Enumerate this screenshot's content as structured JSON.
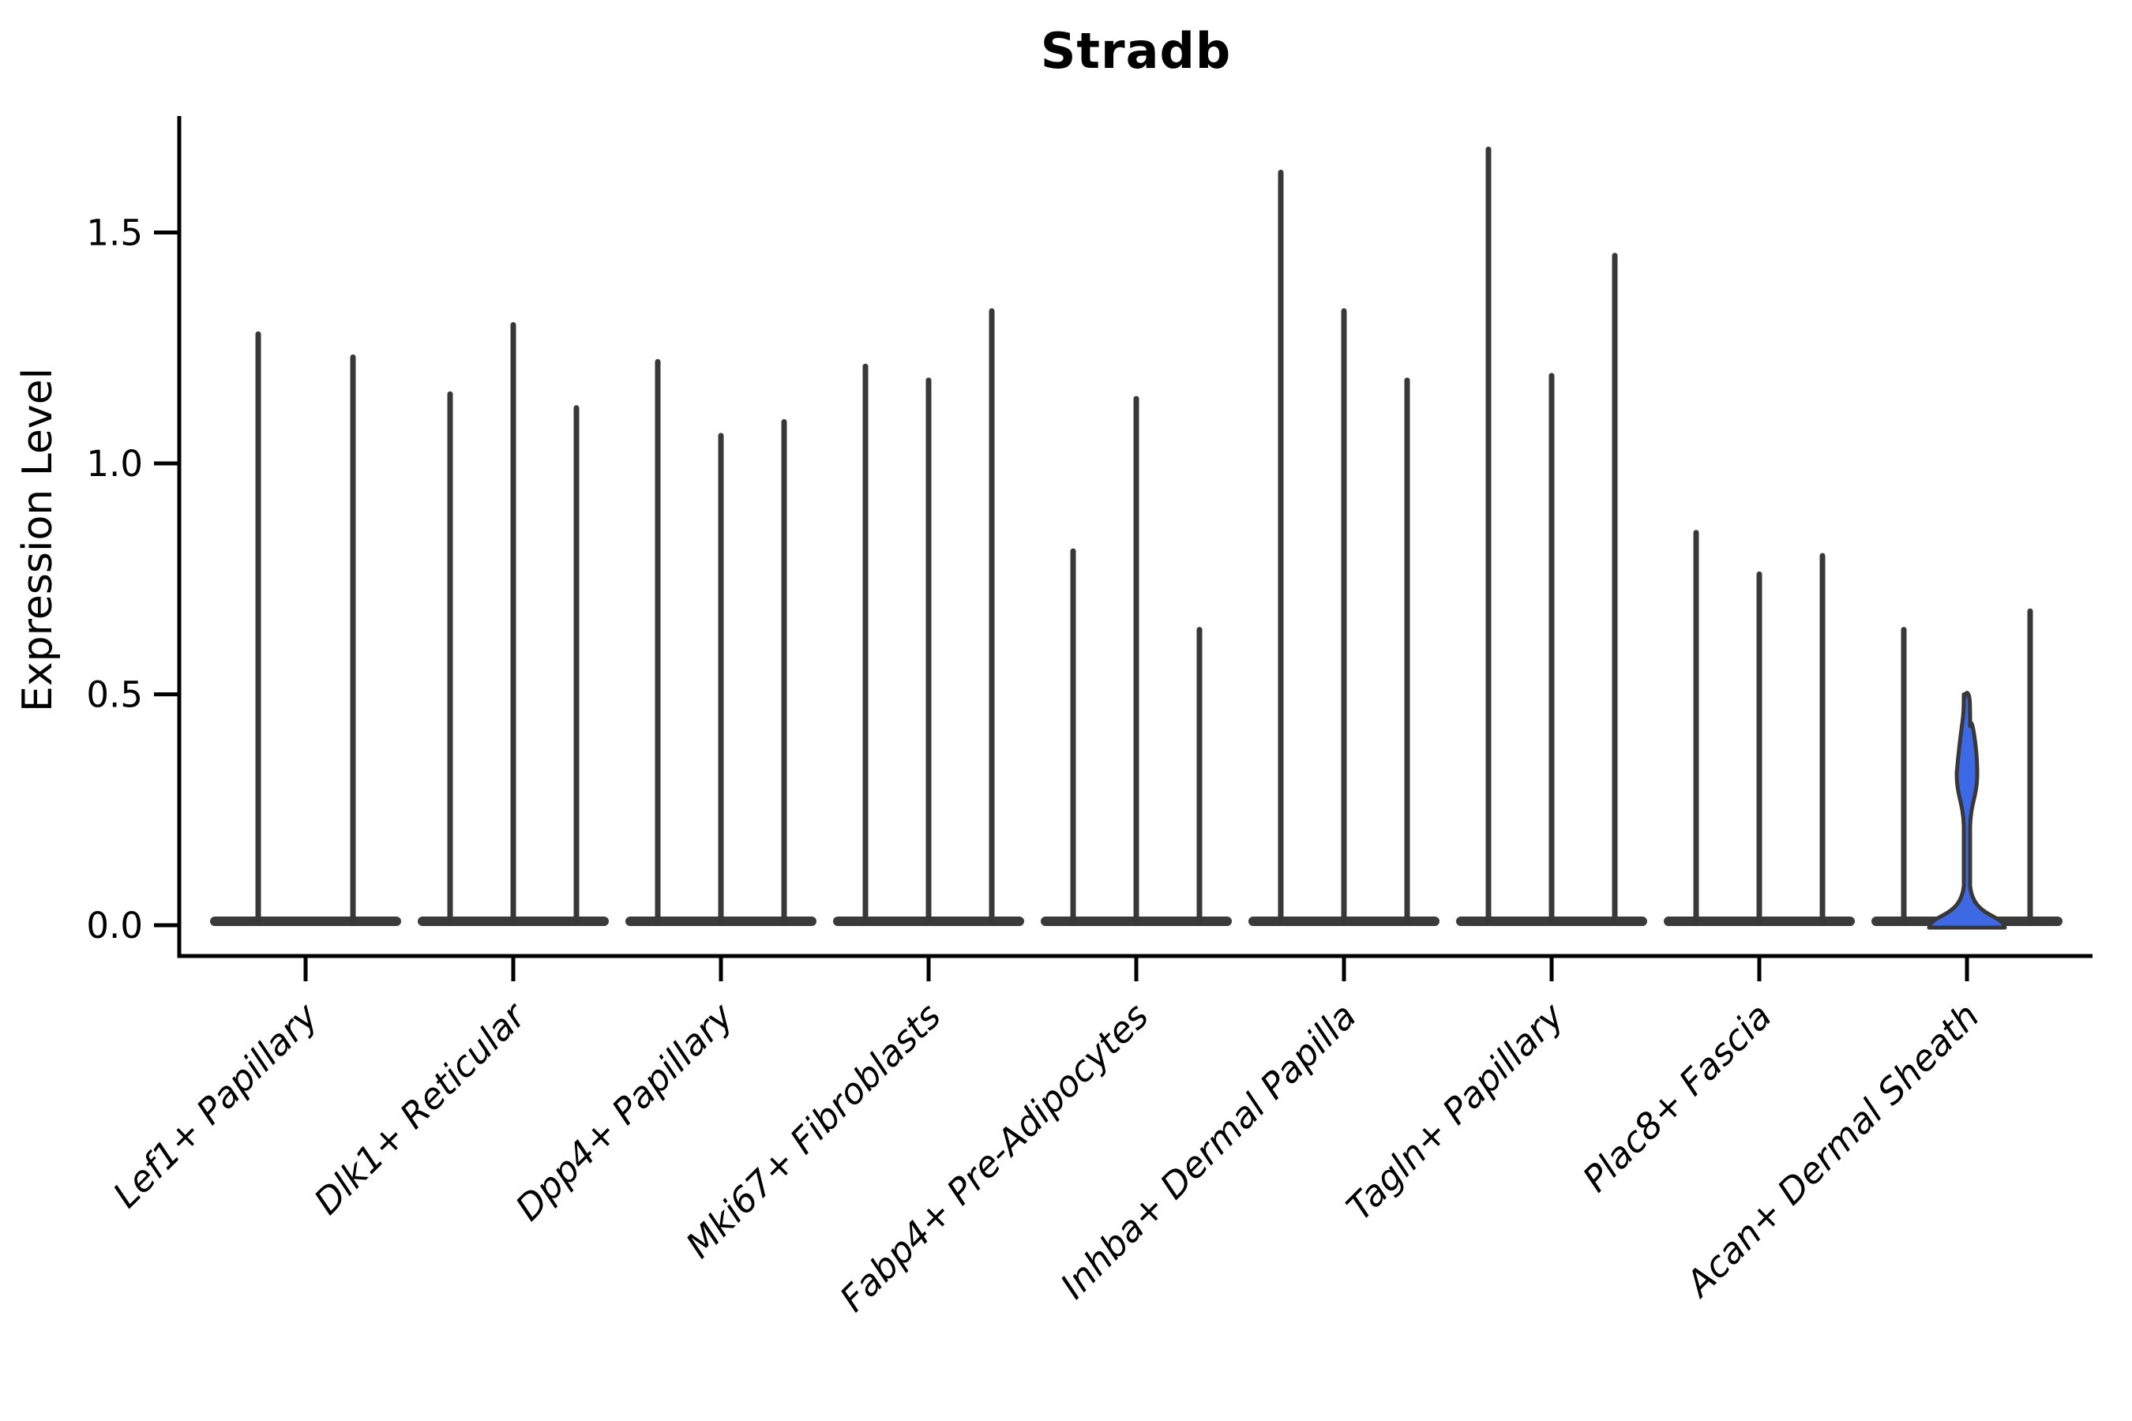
{
  "chart_data": {
    "type": "violin",
    "title": "Stradb",
    "ylabel": "Expression Level",
    "xlabel": "",
    "grid": false,
    "legend": null,
    "ylim": [
      -0.073,
      1.752
    ],
    "yticks": [
      "0.0",
      "0.5",
      "1.0",
      "1.5"
    ],
    "ytick_values": [
      0.0,
      0.5,
      1.0,
      1.5
    ],
    "categories": [
      "Lef1+ Papillary",
      "Dlk1+ Reticular",
      "Dpp4+ Papillary",
      "Mki67+ Fibroblasts",
      "Fabp4+ Pre-Adipocytes",
      "Inhba+ Dermal Papilla",
      "Tagln+ Papillary",
      "Plac8+ Fascia",
      "Acan+ Dermal Sheath"
    ],
    "groups": [
      {
        "category": "Lef1+ Papillary",
        "violins": [
          {
            "max": 1.28
          },
          {
            "max": 1.23
          }
        ]
      },
      {
        "category": "Dlk1+ Reticular",
        "violins": [
          {
            "max": 1.15
          },
          {
            "max": 1.3
          },
          {
            "max": 1.12
          }
        ]
      },
      {
        "category": "Dpp4+ Papillary",
        "violins": [
          {
            "max": 1.22
          },
          {
            "max": 1.06
          },
          {
            "max": 1.09
          }
        ]
      },
      {
        "category": "Mki67+ Fibroblasts",
        "violins": [
          {
            "max": 1.21
          },
          {
            "max": 1.18
          },
          {
            "max": 1.33
          }
        ]
      },
      {
        "category": "Fabp4+ Pre-Adipocytes",
        "violins": [
          {
            "max": 0.81
          },
          {
            "max": 1.14
          },
          {
            "max": 0.64
          }
        ]
      },
      {
        "category": "Inhba+ Dermal Papilla",
        "violins": [
          {
            "max": 1.63
          },
          {
            "max": 1.33
          },
          {
            "max": 1.18
          }
        ]
      },
      {
        "category": "Tagln+ Papillary",
        "violins": [
          {
            "max": 1.68
          },
          {
            "max": 1.19
          },
          {
            "max": 1.45
          }
        ]
      },
      {
        "category": "Plac8+ Fascia",
        "violins": [
          {
            "max": 0.85
          },
          {
            "max": 0.76
          },
          {
            "max": 0.8
          }
        ]
      },
      {
        "category": "Acan+ Dermal Sheath",
        "violins": [
          {
            "max": 0.64
          },
          {
            "max": 0.5,
            "highlight": true,
            "bulge_top": 0.41,
            "bulge_bottom": 0.25,
            "bulge_halfwidth": 13,
            "flare_start": 0.085,
            "fill": "#3D69E5"
          },
          {
            "max": 0.68
          }
        ]
      }
    ],
    "colors": {
      "violin_stroke": "#383838",
      "base_fill": "#3a3a3a",
      "highlight_fill": "#3D69E5",
      "axis": "#000000",
      "text": "#000000",
      "background": "#ffffff"
    }
  }
}
